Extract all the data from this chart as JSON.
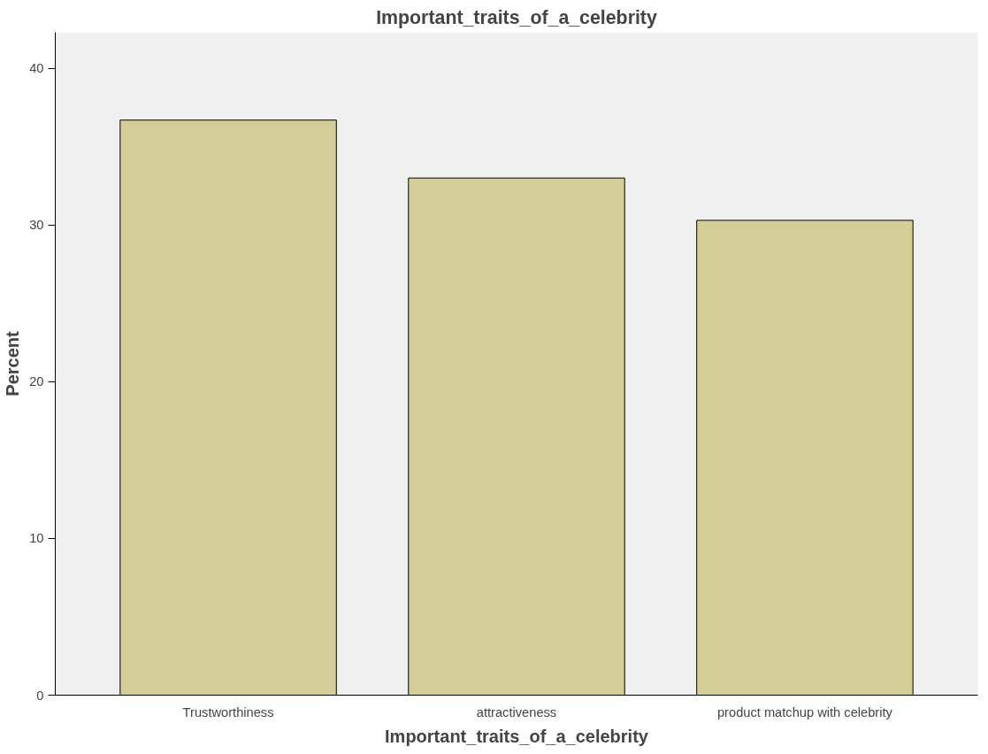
{
  "chart_data": {
    "type": "bar",
    "title": "Important_traits_of_a_celebrity",
    "xlabel": "Important_traits_of_a_celebrity",
    "ylabel": "Percent",
    "categories": [
      "Trustworthiness",
      "attractiveness",
      "product matchup with celebrity"
    ],
    "values": [
      36.7,
      33.0,
      30.3
    ],
    "color": "#d3ce97",
    "ylim": [
      0,
      42.3
    ],
    "yticks": [
      0,
      10,
      20,
      30,
      40
    ],
    "grid": false
  }
}
